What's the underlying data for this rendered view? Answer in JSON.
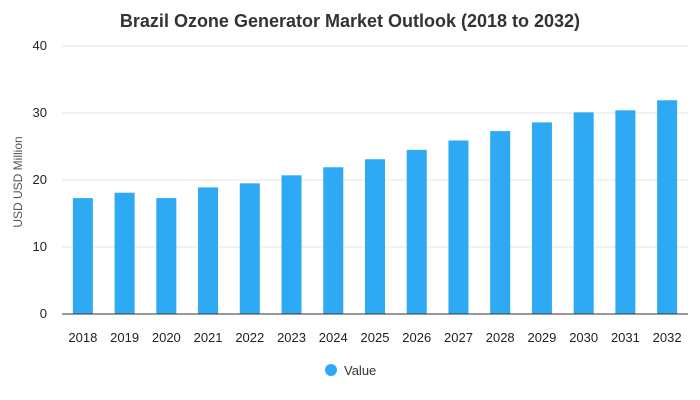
{
  "chart_data": {
    "type": "bar",
    "title": "Brazil Ozone Generator Market Outlook (2018 to 2032)",
    "xlabel": "",
    "ylabel": "USD USD Million",
    "ylim": [
      0,
      40
    ],
    "yticks": [
      0,
      10,
      20,
      30,
      40
    ],
    "grid": true,
    "legend_position": "bottom",
    "categories": [
      "2018",
      "2019",
      "2020",
      "2021",
      "2022",
      "2023",
      "2024",
      "2025",
      "2026",
      "2027",
      "2028",
      "2029",
      "2030",
      "2031",
      "2032"
    ],
    "series": [
      {
        "name": "Value",
        "color": "#2eaaf5",
        "values": [
          17.3,
          18.1,
          17.3,
          18.9,
          19.5,
          20.7,
          21.9,
          23.1,
          24.5,
          25.9,
          27.3,
          28.6,
          30.1,
          30.4,
          31.9
        ]
      }
    ]
  }
}
